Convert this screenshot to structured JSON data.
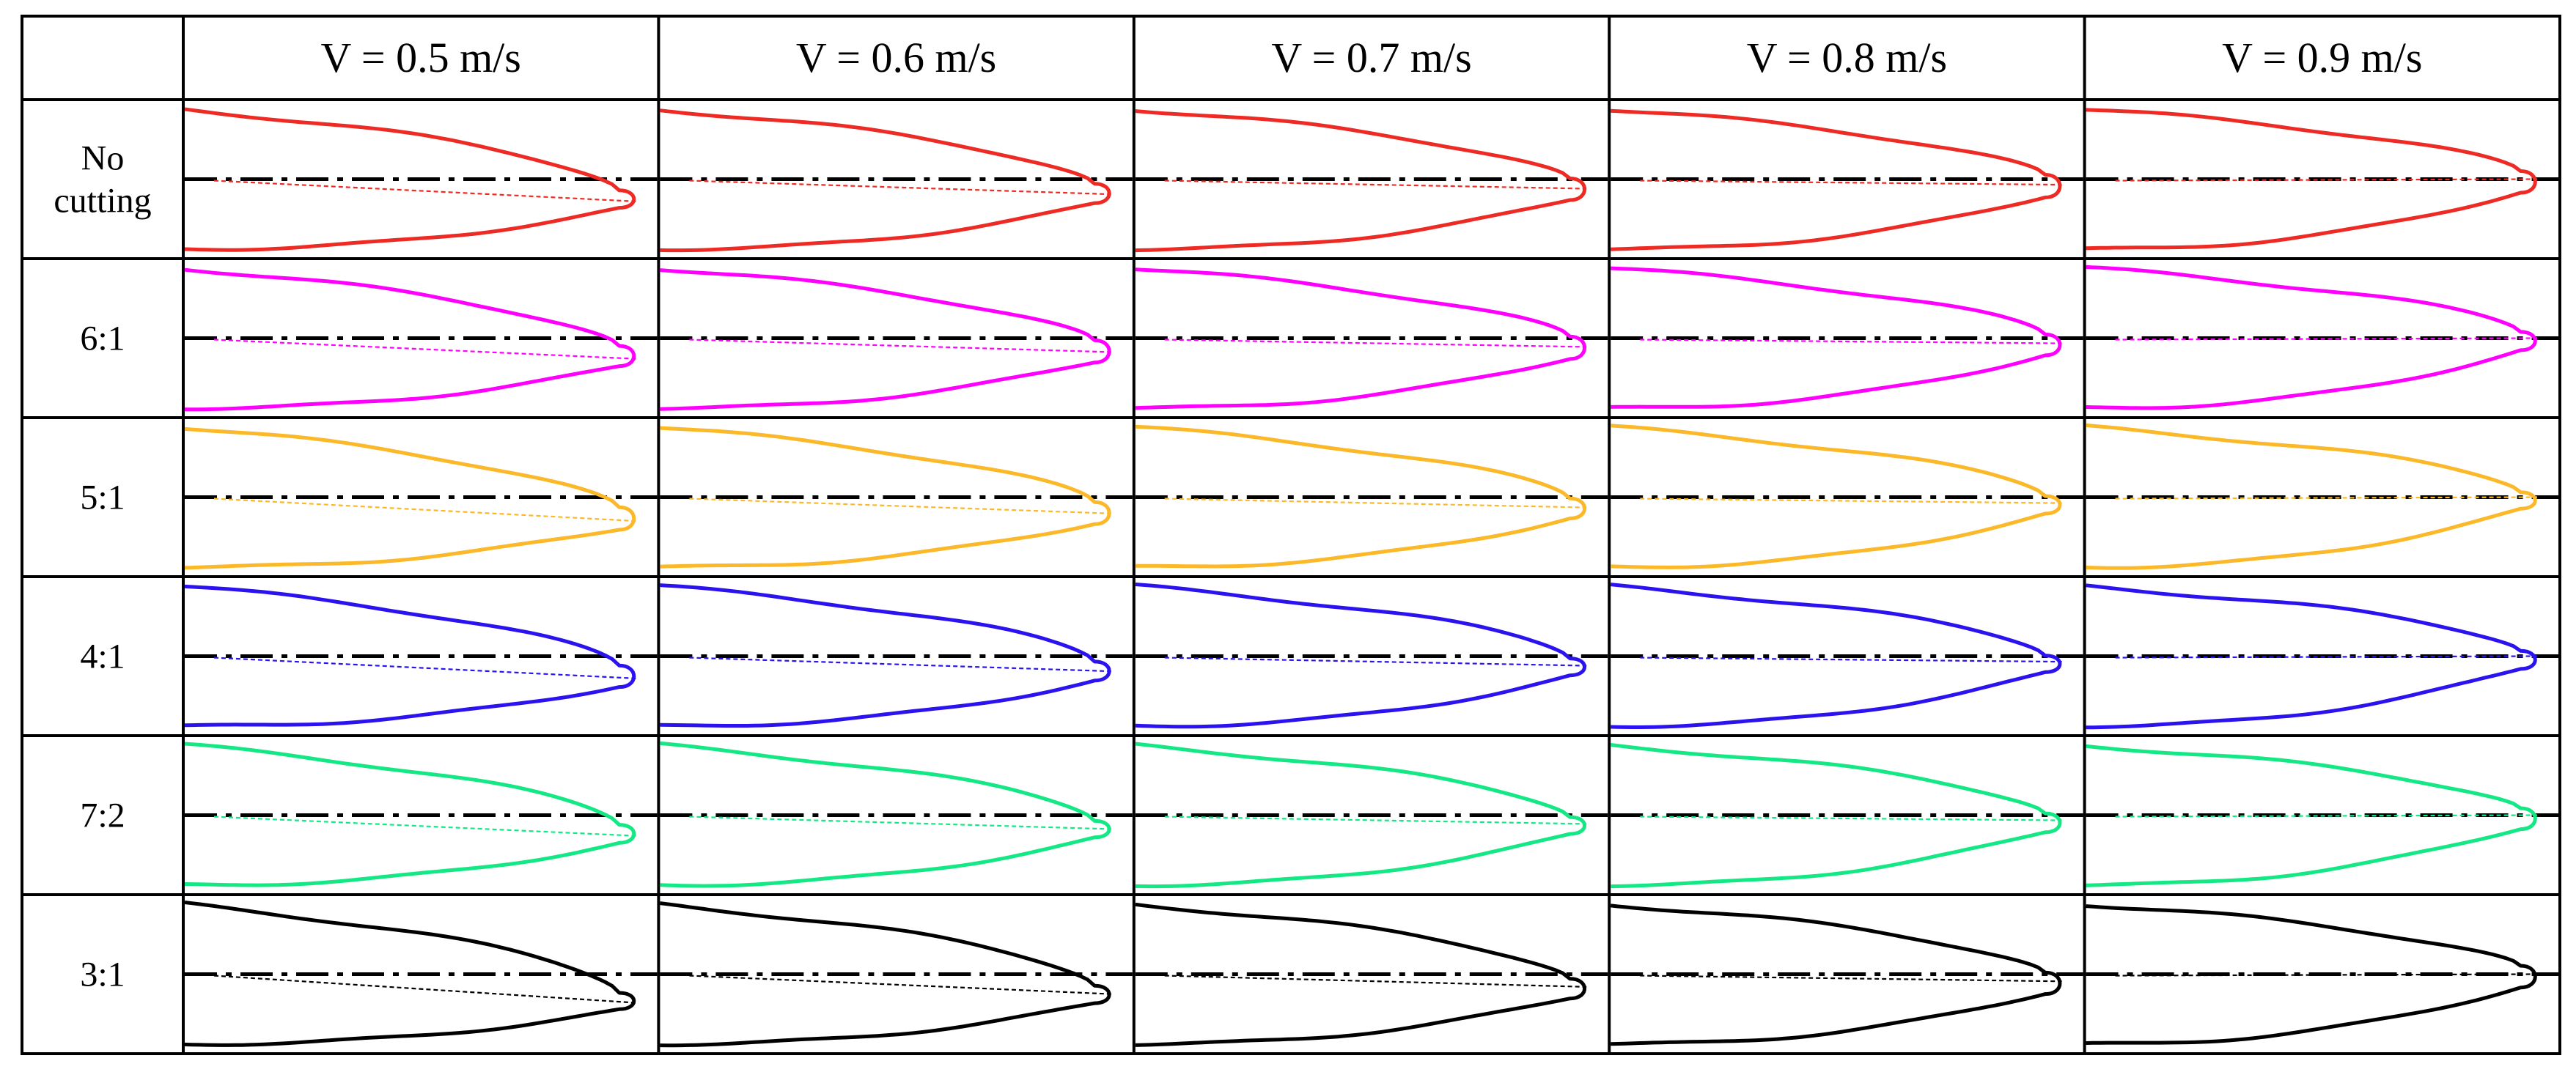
{
  "columns": [
    {
      "label": "V = 0.5 m/s",
      "tip_offset": 0.08
    },
    {
      "label": "V = 0.6 m/s",
      "tip_offset": 0.05
    },
    {
      "label": "V = 0.7 m/s",
      "tip_offset": 0.03
    },
    {
      "label": "V = 0.8 m/s",
      "tip_offset": 0.02
    },
    {
      "label": "V = 0.9 m/s",
      "tip_offset": 0.0
    }
  ],
  "rows": [
    {
      "label_lines": [
        "No",
        "cutting"
      ],
      "color": "#ee2a24",
      "tip_base": 0.31,
      "tip_drop": 0.06
    },
    {
      "label_lines": [
        "6:1"
      ],
      "color": "#ff00ff",
      "tip_base": 0.29,
      "tip_drop": 0.05
    },
    {
      "label_lines": [
        "5:1"
      ],
      "color": "#fbb829",
      "tip_base": 0.27,
      "tip_drop": 0.07
    },
    {
      "label_lines": [
        "4:1"
      ],
      "color": "#2a13ee",
      "tip_base": 0.22,
      "tip_drop": 0.06
    },
    {
      "label_lines": [
        "7:2"
      ],
      "color": "#14e885",
      "tip_base": 0.18,
      "tip_drop": 0.05
    },
    {
      "label_lines": [
        "3:1"
      ],
      "color": "#000000",
      "tip_base": 0.34,
      "tip_drop": 0.1
    }
  ]
}
